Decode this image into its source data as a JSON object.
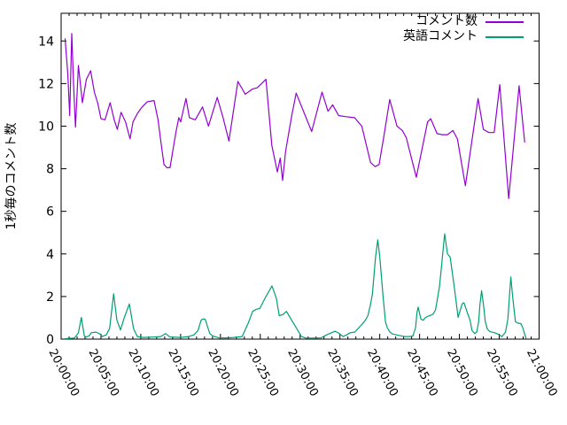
{
  "figure": {
    "background_color": "#ffffff",
    "frame_color": "#000000",
    "text_color": "#000000"
  },
  "chart_data": {
    "type": "line",
    "title": "",
    "xlabel": "",
    "ylabel": "1秒毎のコメント数",
    "grid": false,
    "legend_position": "top-right",
    "xlim_seconds": [
      0,
      3600
    ],
    "ylim": [
      0,
      15.3
    ],
    "y_ticks": [
      0,
      2,
      4,
      6,
      8,
      10,
      12,
      14
    ],
    "x_tick_labels": [
      "20:00:00",
      "20:05:00",
      "20:10:00",
      "20:15:00",
      "20:20:00",
      "20:25:00",
      "20:30:00",
      "20:35:00",
      "20:40:00",
      "20:45:00",
      "20:50:00",
      "20:55:00",
      "21:00:00"
    ],
    "x_tick_seconds": [
      0,
      300,
      600,
      900,
      1200,
      1500,
      1800,
      2100,
      2400,
      2700,
      3000,
      3300,
      3600
    ],
    "x_minor_interval_seconds": 60,
    "series": [
      {
        "name": "コメント数",
        "color": "#9400d3",
        "points": [
          [
            30,
            14.1
          ],
          [
            50,
            12.45
          ],
          [
            65,
            10.5
          ],
          [
            80,
            14.35
          ],
          [
            95,
            11.8
          ],
          [
            108,
            9.95
          ],
          [
            130,
            12.85
          ],
          [
            160,
            11.1
          ],
          [
            190,
            12.2
          ],
          [
            222,
            12.6
          ],
          [
            250,
            11.6
          ],
          [
            275,
            11.1
          ],
          [
            300,
            10.35
          ],
          [
            330,
            10.3
          ],
          [
            369,
            11.1
          ],
          [
            400,
            10.3
          ],
          [
            423,
            9.85
          ],
          [
            452,
            10.65
          ],
          [
            485,
            10.2
          ],
          [
            519,
            9.4
          ],
          [
            541,
            10.2
          ],
          [
            575,
            10.6
          ],
          [
            610,
            10.9
          ],
          [
            650,
            11.15
          ],
          [
            700,
            11.2
          ],
          [
            730,
            10.3
          ],
          [
            753,
            9.2
          ],
          [
            775,
            8.2
          ],
          [
            797,
            8.05
          ],
          [
            820,
            8.05
          ],
          [
            864,
            9.7
          ],
          [
            886,
            10.4
          ],
          [
            900,
            10.2
          ],
          [
            940,
            11.3
          ],
          [
            966,
            10.4
          ],
          [
            1010,
            10.3
          ],
          [
            1065,
            10.9
          ],
          [
            1110,
            10.0
          ],
          [
            1176,
            11.35
          ],
          [
            1220,
            10.4
          ],
          [
            1264,
            9.3
          ],
          [
            1331,
            12.1
          ],
          [
            1387,
            11.5
          ],
          [
            1443,
            11.75
          ],
          [
            1476,
            11.8
          ],
          [
            1510,
            12.0
          ],
          [
            1543,
            12.2
          ],
          [
            1587,
            9.1
          ],
          [
            1629,
            7.85
          ],
          [
            1650,
            8.5
          ],
          [
            1668,
            7.45
          ],
          [
            1690,
            8.8
          ],
          [
            1737,
            10.5
          ],
          [
            1770,
            11.55
          ],
          [
            1887,
            9.75
          ],
          [
            1965,
            11.6
          ],
          [
            2010,
            10.7
          ],
          [
            2045,
            11.0
          ],
          [
            2090,
            10.5
          ],
          [
            2140,
            10.45
          ],
          [
            2210,
            10.4
          ],
          [
            2265,
            10.0
          ],
          [
            2330,
            8.3
          ],
          [
            2365,
            8.1
          ],
          [
            2395,
            8.2
          ],
          [
            2430,
            9.5
          ],
          [
            2475,
            11.25
          ],
          [
            2530,
            10.0
          ],
          [
            2570,
            9.8
          ],
          [
            2600,
            9.46
          ],
          [
            2675,
            7.6
          ],
          [
            2760,
            10.2
          ],
          [
            2784,
            10.35
          ],
          [
            2831,
            9.65
          ],
          [
            2870,
            9.6
          ],
          [
            2911,
            9.6
          ],
          [
            2951,
            9.8
          ],
          [
            2985,
            9.4
          ],
          [
            3045,
            7.2
          ],
          [
            3140,
            11.3
          ],
          [
            3180,
            9.85
          ],
          [
            3222,
            9.7
          ],
          [
            3262,
            9.7
          ],
          [
            3304,
            11.95
          ],
          [
            3371,
            6.6
          ],
          [
            3449,
            11.9
          ],
          [
            3491,
            9.25
          ]
        ]
      },
      {
        "name": "英語コメント",
        "color": "#009e73",
        "points": [
          [
            30,
            0.02
          ],
          [
            100,
            0.05
          ],
          [
            130,
            0.3
          ],
          [
            152,
            1.02
          ],
          [
            175,
            0.15
          ],
          [
            187,
            0.1
          ],
          [
            210,
            0.15
          ],
          [
            227,
            0.3
          ],
          [
            260,
            0.33
          ],
          [
            290,
            0.25
          ],
          [
            310,
            0.12
          ],
          [
            340,
            0.2
          ],
          [
            365,
            0.5
          ],
          [
            396,
            2.13
          ],
          [
            420,
            0.9
          ],
          [
            447,
            0.43
          ],
          [
            475,
            1.0
          ],
          [
            514,
            1.65
          ],
          [
            545,
            0.5
          ],
          [
            574,
            0.12
          ],
          [
            620,
            0.08
          ],
          [
            700,
            0.1
          ],
          [
            750,
            0.12
          ],
          [
            786,
            0.26
          ],
          [
            820,
            0.1
          ],
          [
            900,
            0.08
          ],
          [
            960,
            0.12
          ],
          [
            1000,
            0.2
          ],
          [
            1030,
            0.4
          ],
          [
            1055,
            0.9
          ],
          [
            1070,
            0.95
          ],
          [
            1085,
            0.93
          ],
          [
            1105,
            0.54
          ],
          [
            1120,
            0.26
          ],
          [
            1142,
            0.15
          ],
          [
            1189,
            0.06
          ],
          [
            1250,
            0.06
          ],
          [
            1300,
            0.08
          ],
          [
            1363,
            0.12
          ],
          [
            1409,
            0.75
          ],
          [
            1443,
            1.3
          ],
          [
            1470,
            1.4
          ],
          [
            1496,
            1.44
          ],
          [
            1543,
            2.0
          ],
          [
            1588,
            2.5
          ],
          [
            1621,
            1.92
          ],
          [
            1643,
            1.1
          ],
          [
            1670,
            1.15
          ],
          [
            1697,
            1.3
          ],
          [
            1743,
            0.82
          ],
          [
            1777,
            0.47
          ],
          [
            1810,
            0.12
          ],
          [
            1843,
            0.05
          ],
          [
            1900,
            0.05
          ],
          [
            1957,
            0.06
          ],
          [
            2000,
            0.2
          ],
          [
            2064,
            0.37
          ],
          [
            2095,
            0.26
          ],
          [
            2124,
            0.12
          ],
          [
            2150,
            0.2
          ],
          [
            2177,
            0.3
          ],
          [
            2211,
            0.33
          ],
          [
            2264,
            0.68
          ],
          [
            2291,
            0.88
          ],
          [
            2311,
            1.1
          ],
          [
            2331,
            1.65
          ],
          [
            2345,
            2.13
          ],
          [
            2357,
            3.03
          ],
          [
            2368,
            3.86
          ],
          [
            2385,
            4.66
          ],
          [
            2400,
            3.86
          ],
          [
            2413,
            2.89
          ],
          [
            2425,
            2.0
          ],
          [
            2443,
            0.82
          ],
          [
            2456,
            0.54
          ],
          [
            2476,
            0.33
          ],
          [
            2496,
            0.24
          ],
          [
            2525,
            0.2
          ],
          [
            2585,
            0.12
          ],
          [
            2625,
            0.12
          ],
          [
            2650,
            0.15
          ],
          [
            2670,
            0.54
          ],
          [
            2680,
            1.23
          ],
          [
            2689,
            1.5
          ],
          [
            2710,
            0.95
          ],
          [
            2725,
            0.88
          ],
          [
            2745,
            1.02
          ],
          [
            2770,
            1.09
          ],
          [
            2800,
            1.16
          ],
          [
            2820,
            1.37
          ],
          [
            2850,
            2.48
          ],
          [
            2865,
            3.44
          ],
          [
            2889,
            4.94
          ],
          [
            2910,
            4.0
          ],
          [
            2930,
            3.85
          ],
          [
            2955,
            2.75
          ],
          [
            2975,
            1.78
          ],
          [
            2990,
            1.02
          ],
          [
            3020,
            1.65
          ],
          [
            3034,
            1.71
          ],
          [
            3060,
            1.23
          ],
          [
            3080,
            0.88
          ],
          [
            3095,
            0.4
          ],
          [
            3115,
            0.26
          ],
          [
            3130,
            0.33
          ],
          [
            3145,
            0.82
          ],
          [
            3155,
            1.65
          ],
          [
            3167,
            2.27
          ],
          [
            3180,
            1.65
          ],
          [
            3195,
            0.82
          ],
          [
            3210,
            0.47
          ],
          [
            3230,
            0.35
          ],
          [
            3265,
            0.3
          ],
          [
            3280,
            0.26
          ],
          [
            3300,
            0.2
          ],
          [
            3320,
            0.12
          ],
          [
            3347,
            0.33
          ],
          [
            3365,
            0.95
          ],
          [
            3377,
            2.06
          ],
          [
            3387,
            2.92
          ],
          [
            3400,
            2.06
          ],
          [
            3412,
            1.37
          ],
          [
            3422,
            0.82
          ],
          [
            3440,
            0.75
          ],
          [
            3462,
            0.73
          ],
          [
            3477,
            0.54
          ],
          [
            3490,
            0.26
          ],
          [
            3501,
            0.05
          ]
        ]
      }
    ]
  },
  "legend": {
    "items": [
      {
        "label": "コメント数"
      },
      {
        "label": "英語コメント"
      }
    ]
  }
}
